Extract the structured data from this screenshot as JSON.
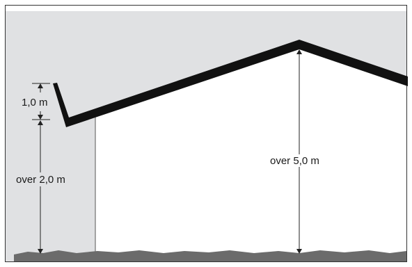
{
  "diagram": {
    "labels": {
      "eave_height": "1,0 m",
      "wall_height": "over 2,0 m",
      "ridge_height": "over 5,0 m"
    },
    "colors": {
      "sky": "#e0e1e3",
      "roof": "#111111",
      "ground": "#6b6b6b",
      "frame": "#333333",
      "line": "#222222"
    }
  }
}
